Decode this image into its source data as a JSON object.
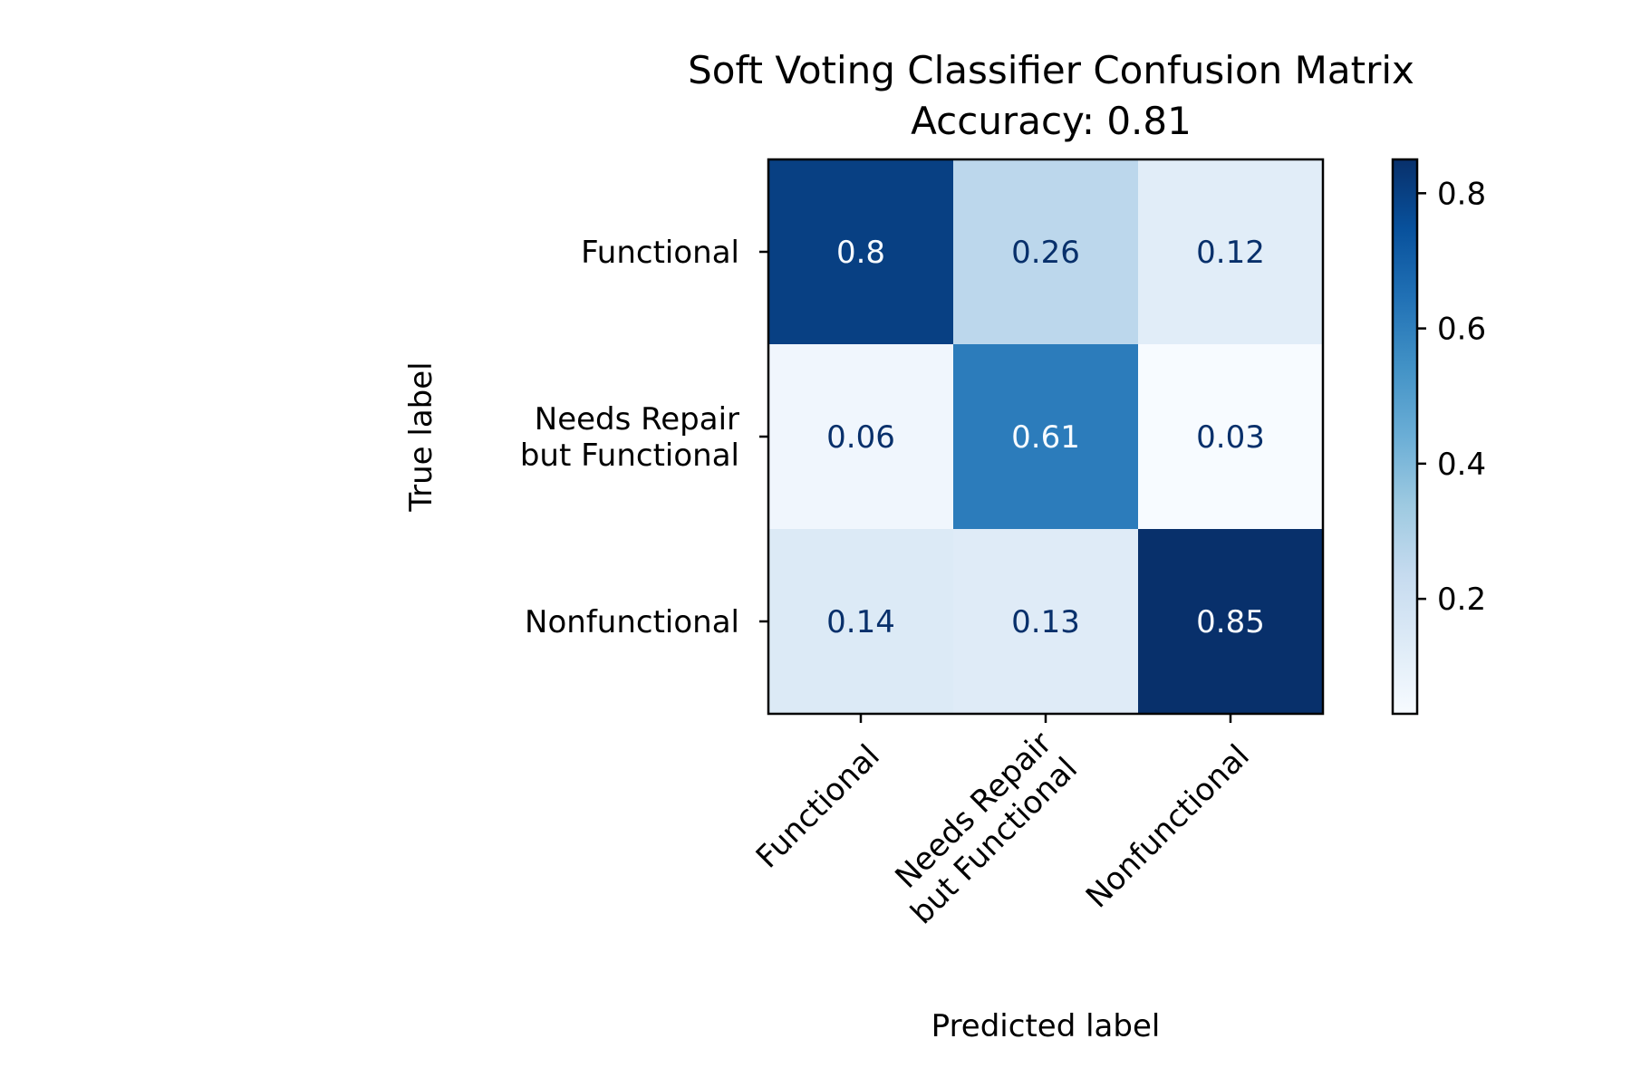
{
  "chart_data": {
    "type": "heatmap",
    "title": "Soft Voting Classifier Confusion Matrix",
    "subtitle": "Accuracy: 0.81",
    "xlabel": "Predicted label",
    "ylabel": "True label",
    "x_categories": [
      "Functional",
      "Needs Repair\nbut Functional",
      "Nonfunctional"
    ],
    "y_categories": [
      "Functional",
      "Needs Repair\nbut Functional",
      "Nonfunctional"
    ],
    "values": [
      [
        0.8,
        0.26,
        0.12
      ],
      [
        0.06,
        0.61,
        0.03
      ],
      [
        0.14,
        0.13,
        0.85
      ]
    ],
    "value_labels": [
      [
        "0.8",
        "0.26",
        "0.12"
      ],
      [
        "0.06",
        "0.61",
        "0.03"
      ],
      [
        "0.14",
        "0.13",
        "0.85"
      ]
    ],
    "colormap": "Blues",
    "colorbar": {
      "range": [
        0.03,
        0.85
      ],
      "ticks": [
        0.2,
        0.4,
        0.6,
        0.8
      ],
      "tick_labels": [
        "0.2",
        "0.4",
        "0.6",
        "0.8"
      ]
    },
    "colors": {
      "low": "#f7fbff",
      "high": "#08306b",
      "dark_text": "#08306b",
      "light_text": "#f7fbff"
    }
  }
}
